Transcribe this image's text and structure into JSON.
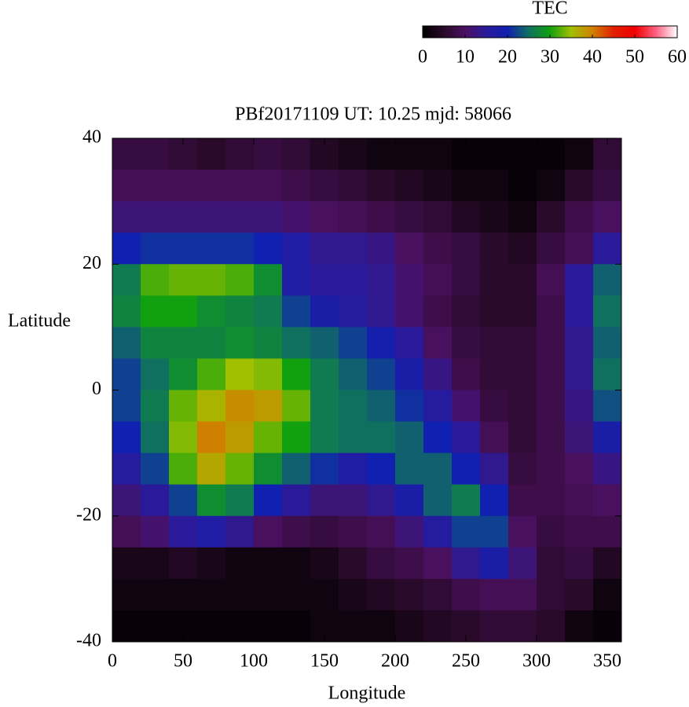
{
  "chart_data": {
    "type": "heatmap",
    "title": "PBf20171109  UT: 10.25  mjd: 58066",
    "xlabel": "Longitude",
    "ylabel": "Latitude",
    "colorbar_title": "TEC",
    "x": [
      10,
      30,
      50,
      70,
      90,
      110,
      130,
      150,
      170,
      190,
      210,
      230,
      250,
      270,
      290,
      310,
      330,
      350
    ],
    "y": [
      37.5,
      32.5,
      27.5,
      22.5,
      17.5,
      12.5,
      7.5,
      2.5,
      -2.5,
      -7.5,
      -12.5,
      -17.5,
      -22.5,
      -27.5,
      -32.5,
      -37.5
    ],
    "z": [
      [
        7,
        7,
        6,
        5,
        6,
        7,
        6,
        4,
        3,
        2,
        2,
        2,
        1,
        1,
        1,
        1,
        2,
        6
      ],
      [
        9,
        9,
        9,
        9,
        9,
        9,
        8,
        7,
        6,
        5,
        4,
        3,
        2,
        2,
        1,
        2,
        5,
        7
      ],
      [
        12,
        12,
        12,
        12,
        12,
        12,
        11,
        10,
        9,
        8,
        7,
        6,
        4,
        3,
        2,
        5,
        8,
        10
      ],
      [
        20,
        21,
        21,
        21,
        21,
        20,
        17,
        14,
        14,
        13,
        10,
        8,
        7,
        5,
        4,
        7,
        9,
        15
      ],
      [
        26,
        32,
        33,
        33,
        32,
        28,
        17,
        15,
        15,
        14,
        11,
        9,
        7,
        5,
        5,
        9,
        15,
        24
      ],
      [
        27,
        30,
        30,
        28,
        27,
        26,
        22,
        18,
        16,
        14,
        11,
        8,
        6,
        5,
        5,
        8,
        15,
        25
      ],
      [
        24,
        27,
        27,
        27,
        28,
        27,
        25,
        24,
        22,
        19,
        15,
        10,
        7,
        6,
        6,
        8,
        14,
        24
      ],
      [
        22,
        25,
        28,
        32,
        35,
        34,
        30,
        26,
        24,
        22,
        18,
        13,
        8,
        6,
        6,
        8,
        14,
        25
      ],
      [
        22,
        26,
        33,
        36,
        39,
        38,
        33,
        26,
        25,
        24,
        21,
        16,
        11,
        7,
        6,
        8,
        13,
        23
      ],
      [
        20,
        25,
        34,
        40,
        38,
        33,
        30,
        26,
        25,
        25,
        24,
        20,
        15,
        9,
        6,
        8,
        12,
        18
      ],
      [
        16,
        22,
        32,
        37,
        33,
        28,
        24,
        21,
        17,
        20,
        24,
        24,
        20,
        14,
        7,
        8,
        10,
        13
      ],
      [
        12,
        15,
        22,
        28,
        26,
        20,
        15,
        12,
        12,
        14,
        18,
        24,
        26,
        20,
        8,
        8,
        9,
        10
      ],
      [
        9,
        11,
        15,
        17,
        14,
        10,
        8,
        7,
        8,
        9,
        12,
        16,
        22,
        22,
        10,
        7,
        8,
        8
      ],
      [
        3,
        3,
        4,
        3,
        2,
        2,
        2,
        3,
        5,
        7,
        8,
        10,
        14,
        18,
        12,
        6,
        7,
        4
      ],
      [
        2,
        2,
        2,
        2,
        2,
        2,
        2,
        2,
        3,
        4,
        5,
        6,
        8,
        9,
        9,
        6,
        5,
        2
      ],
      [
        1,
        1,
        1,
        1,
        1,
        1,
        1,
        2,
        2,
        2,
        3,
        4,
        5,
        6,
        6,
        5,
        2,
        1
      ]
    ],
    "xlim": [
      0,
      360
    ],
    "xticks": [
      0,
      50,
      100,
      150,
      200,
      250,
      300,
      350
    ],
    "ylim": [
      -40,
      40
    ],
    "yticks": [
      -40,
      -20,
      0,
      20,
      40
    ],
    "clim": [
      0,
      60
    ],
    "cticks": [
      0,
      10,
      20,
      30,
      40,
      50,
      60
    ],
    "colormap": [
      "#000000",
      "#2a0a2a",
      "#4a1060",
      "#2a1a9a",
      "#1020b0",
      "#107060",
      "#10a010",
      "#a0c000",
      "#d08000",
      "#e02000",
      "#f00000",
      "#ff6080",
      "#ffffff"
    ]
  }
}
